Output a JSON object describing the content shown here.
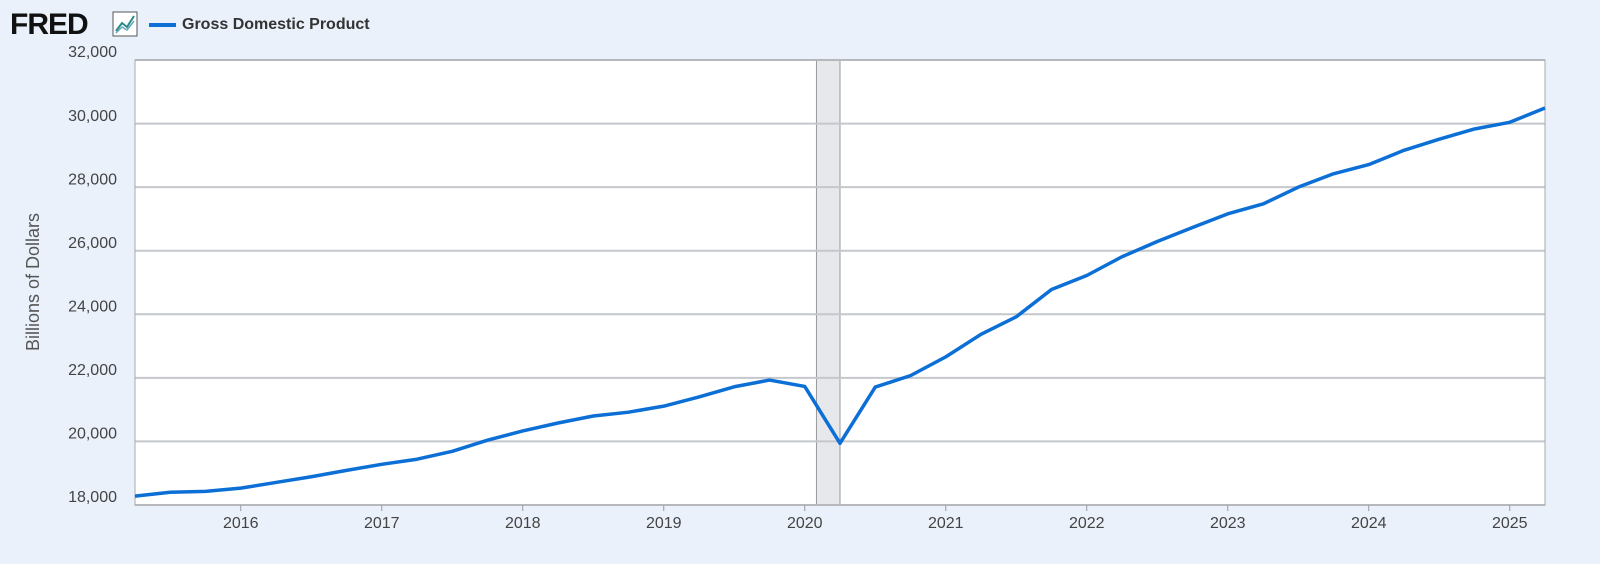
{
  "logo": "FRED",
  "chart_data": {
    "type": "line",
    "ylabel": "Billions of Dollars",
    "x": [
      2015.25,
      2015.5,
      2015.75,
      2016,
      2016.25,
      2016.5,
      2016.75,
      2017,
      2017.25,
      2017.5,
      2017.75,
      2018,
      2018.25,
      2018.5,
      2018.75,
      2019,
      2019.25,
      2019.5,
      2019.75,
      2020,
      2020.25,
      2020.5,
      2020.75,
      2021,
      2021.25,
      2021.5,
      2021.75,
      2022,
      2022.25,
      2022.5,
      2022.75,
      2023,
      2023.25,
      2023.5,
      2023.75,
      2024,
      2024.25,
      2024.5,
      2024.75,
      2025,
      2025.25
    ],
    "series": [
      {
        "name": "Gross Domestic Product",
        "color": "#0b6fd6",
        "values": [
          18280,
          18400,
          18430,
          18530,
          18710,
          18890,
          19090,
          19280,
          19440,
          19690,
          20040,
          20330,
          20580,
          20800,
          20920,
          21110,
          21400,
          21720,
          21930,
          21730,
          19940,
          21710,
          22070,
          22660,
          23370,
          23920,
          24780,
          25220,
          25810,
          26290,
          26730,
          27160,
          27470,
          28000,
          28420,
          28710,
          29160,
          29510,
          29830,
          30040,
          30490
        ]
      }
    ],
    "recessions": [
      [
        2020.083,
        2020.25
      ]
    ],
    "xlim": [
      2015.25,
      2025.25
    ],
    "xticks": [
      2016,
      2017,
      2018,
      2019,
      2020,
      2021,
      2022,
      2023,
      2024,
      2025
    ],
    "ylim": [
      18000,
      32000
    ],
    "yticks": [
      {
        "value": 18000,
        "label": "18,000"
      },
      {
        "value": 20000,
        "label": "20,000"
      },
      {
        "value": 22000,
        "label": "22,000"
      },
      {
        "value": 24000,
        "label": "24,000"
      },
      {
        "value": 26000,
        "label": "26,000"
      },
      {
        "value": 28000,
        "label": "28,000"
      },
      {
        "value": 30000,
        "label": "30,000"
      },
      {
        "value": 32000,
        "label": "32,000"
      }
    ],
    "grid": true
  }
}
